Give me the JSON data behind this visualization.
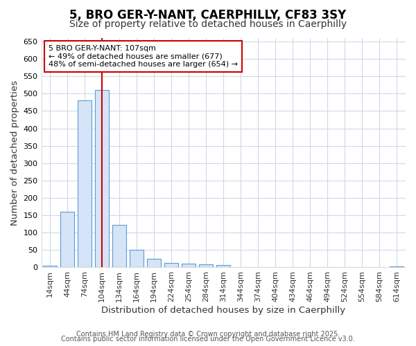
{
  "title1": "5, BRO GER-Y-NANT, CAERPHILLY, CF83 3SY",
  "title2": "Size of property relative to detached houses in Caerphilly",
  "xlabel": "Distribution of detached houses by size in Caerphilly",
  "ylabel": "Number of detached properties",
  "categories": [
    "14sqm",
    "44sqm",
    "74sqm",
    "104sqm",
    "134sqm",
    "164sqm",
    "194sqm",
    "224sqm",
    "254sqm",
    "284sqm",
    "314sqm",
    "344sqm",
    "374sqm",
    "404sqm",
    "434sqm",
    "464sqm",
    "494sqm",
    "524sqm",
    "554sqm",
    "584sqm",
    "614sqm"
  ],
  "values": [
    5,
    160,
    480,
    510,
    122,
    50,
    25,
    12,
    10,
    8,
    7,
    0,
    0,
    0,
    0,
    0,
    0,
    0,
    0,
    0,
    3
  ],
  "bar_color": "#d6e4f7",
  "bar_edge_color": "#5b9bd5",
  "red_line_color": "#cc0000",
  "annotation_text": "5 BRO GER-Y-NANT: 107sqm\n← 49% of detached houses are smaller (677)\n48% of semi-detached houses are larger (654) →",
  "annotation_box_edge": "#cc0000",
  "ylim": [
    0,
    660
  ],
  "yticks": [
    0,
    50,
    100,
    150,
    200,
    250,
    300,
    350,
    400,
    450,
    500,
    550,
    600,
    650
  ],
  "background_color": "#ffffff",
  "plot_bg_color": "#ffffff",
  "grid_color": "#d0d8e8",
  "footer1": "Contains HM Land Registry data © Crown copyright and database right 2025.",
  "footer2": "Contains public sector information licensed under the Open Government Licence v3.0.",
  "title_fontsize": 12,
  "subtitle_fontsize": 10,
  "tick_fontsize": 8,
  "label_fontsize": 9.5,
  "footer_fontsize": 7
}
